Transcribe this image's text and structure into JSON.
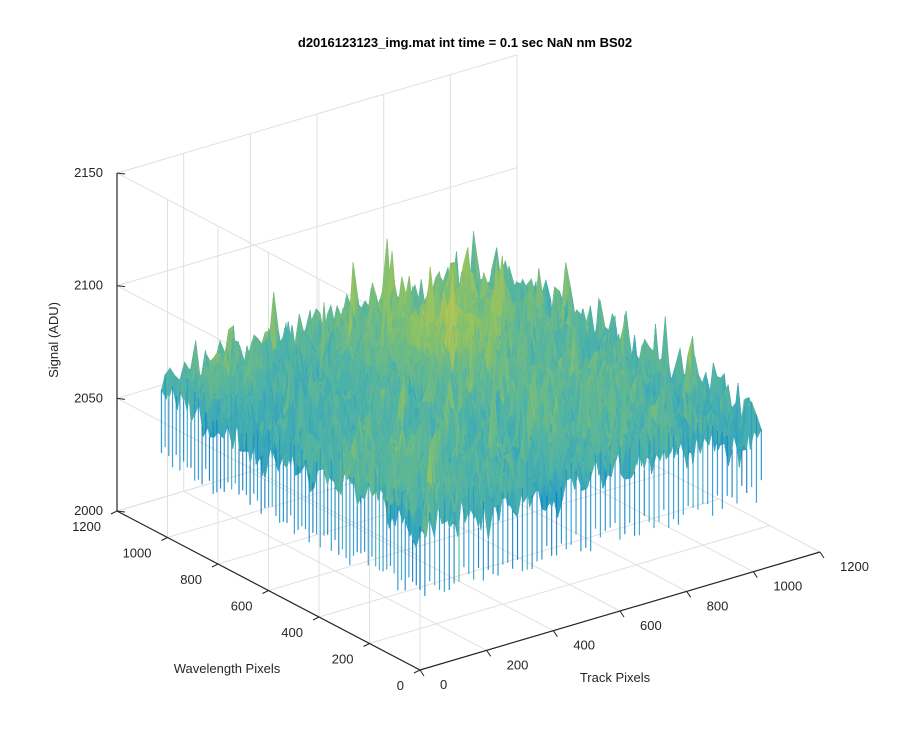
{
  "chart_data": {
    "type": "surface",
    "title": "d2016123123_img.mat int time = 0.1 sec  NaN nm BS02",
    "xlabel": "Track Pixels",
    "ylabel": "Wavelength Pixels",
    "zlabel": "Signal (ADU)",
    "xlim": [
      0,
      1200
    ],
    "ylim": [
      0,
      1200
    ],
    "zlim": [
      2000,
      2150
    ],
    "x_ticks": [
      "0",
      "200",
      "400",
      "600",
      "800",
      "1000",
      "1200"
    ],
    "y_ticks": [
      "0",
      "200",
      "400",
      "600",
      "800",
      "1000",
      "1200"
    ],
    "z_ticks": [
      "2000",
      "2050",
      "2100",
      "2150"
    ],
    "data_extent": {
      "x": [
        0,
        1024
      ],
      "y": [
        0,
        1024
      ]
    },
    "signal_mean": 2065,
    "signal_range": [
      2035,
      2145
    ],
    "colormap": [
      "#0072bd",
      "#1e96cf",
      "#4cb2aa",
      "#8cc266",
      "#c9c64a",
      "#e3cc54"
    ],
    "grid": true
  }
}
